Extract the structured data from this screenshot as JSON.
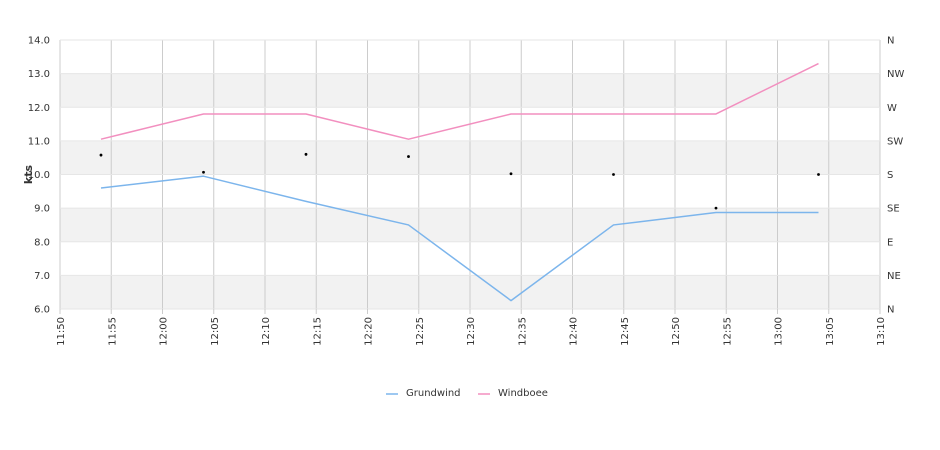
{
  "chart_data": {
    "type": "line",
    "title": "",
    "xlabel": "",
    "ylabel": "kts",
    "ylim": [
      6.0,
      14.0
    ],
    "y_ticks": [
      "6.0",
      "7.0",
      "8.0",
      "9.0",
      "10.0",
      "11.0",
      "12.0",
      "13.0",
      "14.0"
    ],
    "x_range": [
      "11:50",
      "13:10"
    ],
    "x_ticks": [
      "11:50",
      "11:55",
      "12:00",
      "12:05",
      "12:10",
      "12:15",
      "12:20",
      "12:25",
      "12:30",
      "12:35",
      "12:40",
      "12:45",
      "12:50",
      "12:55",
      "13:00",
      "13:05",
      "13:10"
    ],
    "x": [
      "11:54",
      "12:04",
      "12:14",
      "12:24",
      "12:34",
      "12:44",
      "12:54",
      "13:04"
    ],
    "series": [
      {
        "name": "Grundwind",
        "color": "#7cb5ec",
        "values": [
          9.6,
          9.95,
          9.2,
          8.5,
          6.25,
          8.5,
          8.87,
          8.87
        ]
      },
      {
        "name": "Windboee",
        "color": "#f28fbf",
        "values": [
          11.05,
          11.8,
          11.8,
          11.05,
          11.8,
          11.8,
          11.8,
          13.3
        ]
      }
    ],
    "direction_axis": {
      "labels": [
        "N",
        "NE",
        "E",
        "SE",
        "S",
        "SW",
        "W",
        "NW",
        "N"
      ],
      "range_degrees": [
        0,
        360
      ],
      "points_degrees": [
        206,
        183,
        207,
        204,
        181,
        180,
        135,
        180
      ],
      "marker_color": "#000000"
    },
    "grid": true,
    "band_color": "#f2f2f2",
    "legend_position": "bottom-center"
  }
}
